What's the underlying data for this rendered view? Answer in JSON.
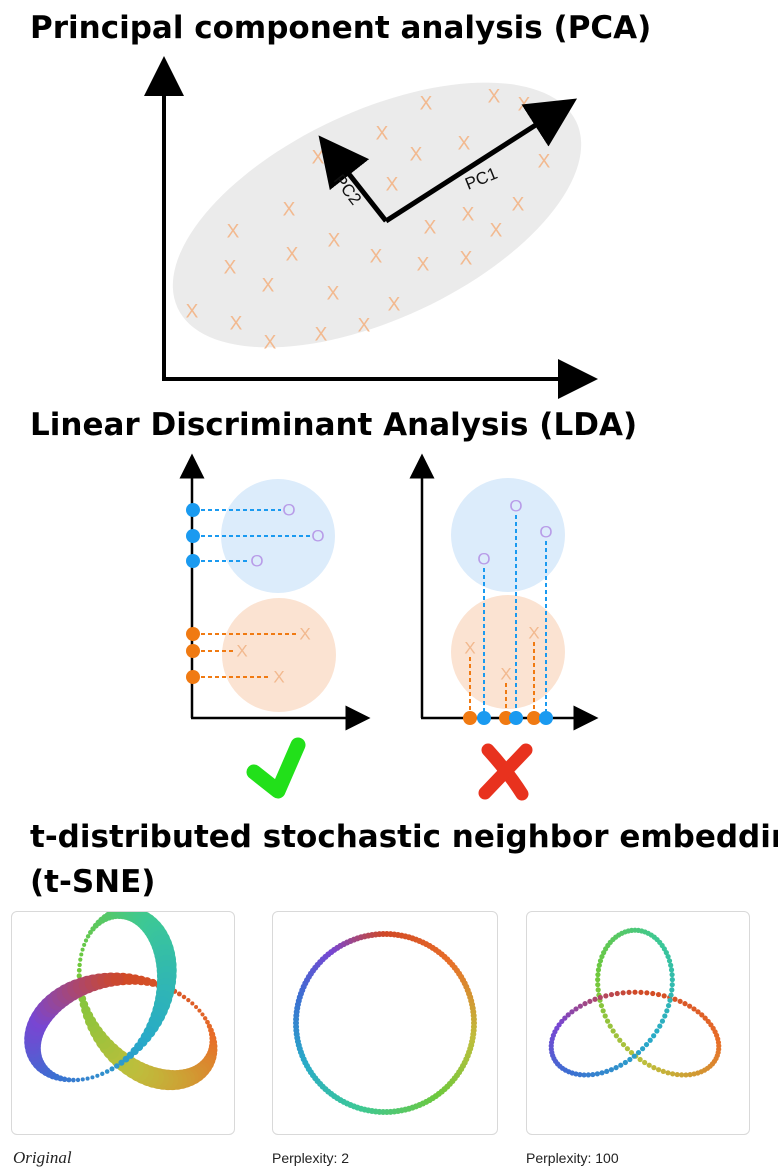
{
  "sections": {
    "pca": {
      "title": "Principal component analysis (PCA)",
      "pc1_label": "PC1",
      "pc2_label": "PC2",
      "point_symbol": "X"
    },
    "lda": {
      "title": "Linear Discriminant Analysis (LDA)",
      "class_a_symbol": "O",
      "class_b_symbol": "X",
      "good_mark": "check-icon",
      "bad_mark": "cross-icon"
    },
    "tsne": {
      "title_line1": "t-distributed stochastic neighbor embedding",
      "title_line2": "(t-SNE)",
      "captions": [
        "Original",
        "Perplexity: 2",
        "Perplexity: 100"
      ]
    }
  },
  "colors": {
    "pca_points": "#f2b98f",
    "ellipse_fill": "#ebebeb",
    "class_a_fill": "#dcecfb",
    "class_a_point": "#b89ce8",
    "class_a_dot": "#1a9af0",
    "class_b_fill": "#fbe3d2",
    "class_b_point": "#f2b98f",
    "class_b_dot": "#f07a12",
    "check": "#22e01a",
    "cross": "#e8321e"
  }
}
